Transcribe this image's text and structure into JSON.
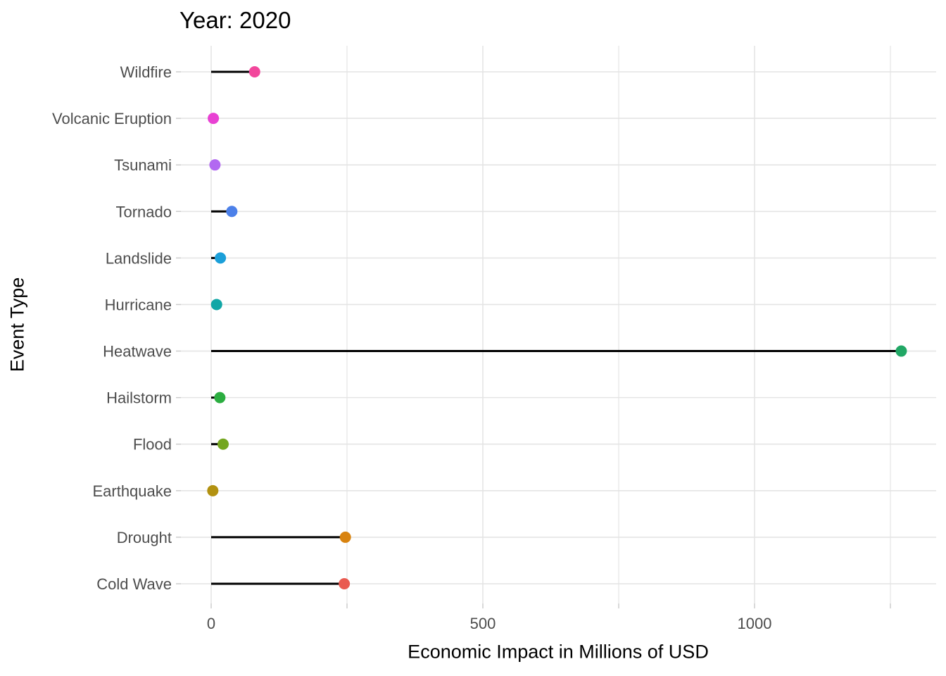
{
  "chart_data": {
    "type": "lollipop",
    "orientation": "horizontal",
    "title": "Year: 2020",
    "xlabel": "Economic Impact in Millions of USD",
    "ylabel": "Event Type",
    "categories": [
      "Wildfire",
      "Volcanic Eruption",
      "Tsunami",
      "Tornado",
      "Landslide",
      "Hurricane",
      "Heatwave",
      "Hailstorm",
      "Flood",
      "Earthquake",
      "Drought",
      "Cold Wave"
    ],
    "values": [
      80,
      4,
      7,
      38,
      17,
      10,
      1270,
      16,
      22,
      3,
      247,
      245
    ],
    "point_colors": [
      "#F2479C",
      "#E841D3",
      "#B269F1",
      "#4C80E9",
      "#1B9FD9",
      "#10A6A6",
      "#21A765",
      "#2BAD40",
      "#74A61F",
      "#B29110",
      "#D8830F",
      "#E95A50"
    ],
    "stem_color": "#000000",
    "x_ticks_labeled": [
      0,
      500,
      1000
    ],
    "x_gridlines": [
      0,
      250,
      500,
      750,
      1000,
      1250
    ],
    "xlim": [
      -60,
      1335
    ],
    "grid": true,
    "legend": false,
    "styles": {
      "grid_color": "#E4E4E4",
      "tick_color": "#CCCCCC",
      "axis_text_color": "#4D4D4D",
      "title_color": "#000000"
    }
  }
}
